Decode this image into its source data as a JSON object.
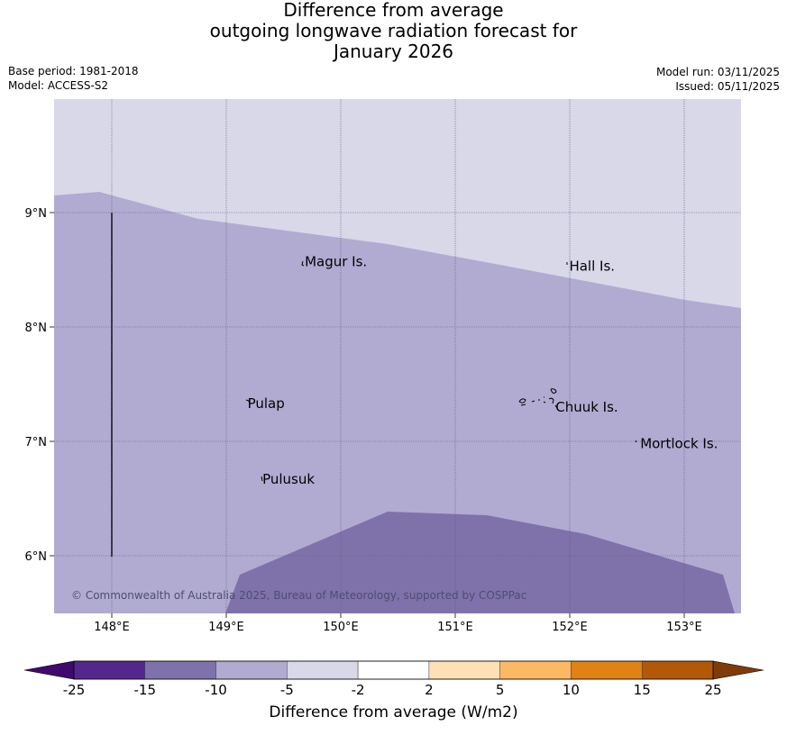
{
  "title": {
    "line1": "Difference from average",
    "line2": "outgoing longwave radiation forecast for",
    "line3": "January 2026"
  },
  "meta_left": {
    "base_period": "Base period: 1981-2018",
    "model": "Model: ACCESS-S2"
  },
  "meta_right": {
    "model_run": "Model run: 03/11/2025",
    "issued": "Issued: 05/11/2025"
  },
  "map": {
    "lon_ticks": [
      {
        "value": 148,
        "label": "148°E"
      },
      {
        "value": 149,
        "label": "149°E"
      },
      {
        "value": 150,
        "label": "150°E"
      },
      {
        "value": 151,
        "label": "151°E"
      },
      {
        "value": 152,
        "label": "152°E"
      },
      {
        "value": 153,
        "label": "153°E"
      }
    ],
    "lat_ticks": [
      {
        "value": 9,
        "label": "9°N"
      },
      {
        "value": 8,
        "label": "8°N"
      },
      {
        "value": 7,
        "label": "7°N"
      },
      {
        "value": 6,
        "label": "6°N"
      }
    ],
    "places": [
      {
        "name": "Magur Is.",
        "lon": 149.67,
        "lat": 8.57
      },
      {
        "name": "Hall Is.",
        "lon": 151.98,
        "lat": 8.53
      },
      {
        "name": "Pulap",
        "lon": 149.17,
        "lat": 7.33
      },
      {
        "name": "Chuuk Is.",
        "lon": 151.86,
        "lat": 7.3
      },
      {
        "name": "Mortlock Is.",
        "lon": 152.6,
        "lat": 6.98
      },
      {
        "name": "Pulusuk",
        "lon": 149.3,
        "lat": 6.67
      }
    ],
    "copyright": "© Commonwealth of Australia 2025, Bureau of Meteorology, supported by COSPPac",
    "colors": {
      "minus5_to_minus2": "#d8d8e9",
      "minus10_to_minus5": "#b1abd2",
      "minus15_to_minus10": "#7f72ab"
    }
  },
  "colorbar": {
    "title": "Difference from average (W/m2)",
    "low_extend_color": "#3f0a6e",
    "high_extend_color": "#7f3b08",
    "bins": [
      {
        "from": "-25",
        "to": "-15",
        "color": "#54278f"
      },
      {
        "from": "-15",
        "to": "-10",
        "color": "#7f72ab"
      },
      {
        "from": "-10",
        "to": "-5",
        "color": "#b1abd2"
      },
      {
        "from": "-5",
        "to": "-2",
        "color": "#d8d8e9"
      },
      {
        "from": "-2",
        "to": "2",
        "color": "#ffffff"
      },
      {
        "from": "2",
        "to": "5",
        "color": "#fee0b6"
      },
      {
        "from": "5",
        "to": "10",
        "color": "#fdb863"
      },
      {
        "from": "10",
        "to": "15",
        "color": "#e08214"
      },
      {
        "from": "15",
        "to": "25",
        "color": "#b35806"
      }
    ],
    "tick_labels": [
      "-25",
      "-15",
      "-10",
      "-5",
      "-2",
      "2",
      "5",
      "10",
      "15",
      "25"
    ]
  }
}
